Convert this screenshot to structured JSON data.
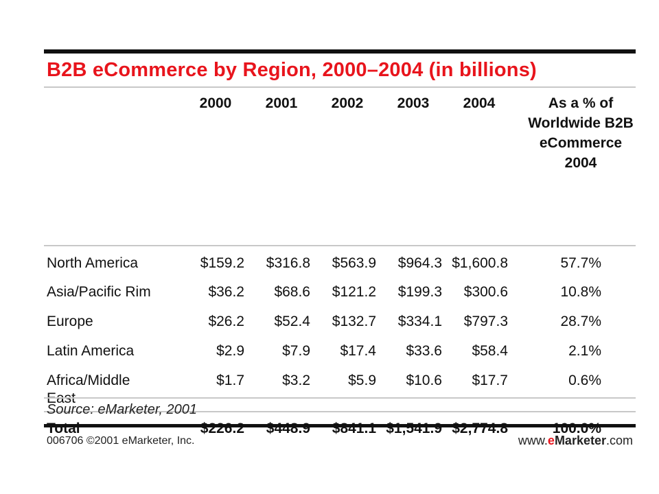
{
  "chart_data": {
    "type": "table",
    "title": "B2B eCommerce by Region, 2000–2004 (in billions)",
    "columns": [
      "",
      "2000",
      "2001",
      "2002",
      "2003",
      "2004",
      "As a % of Worldwide B2B eCommerce 2004"
    ],
    "rows": [
      {
        "label": "North America",
        "values": [
          "$159.2",
          "$316.8",
          "$563.9",
          "$964.3",
          "$1,600.8"
        ],
        "share": "57.7%"
      },
      {
        "label": "Asia/Pacific Rim",
        "values": [
          "$36.2",
          "$68.6",
          "$121.2",
          "$199.3",
          "$300.6"
        ],
        "share": "10.8%"
      },
      {
        "label": "Europe",
        "values": [
          "$26.2",
          "$52.4",
          "$132.7",
          "$334.1",
          "$797.3"
        ],
        "share": "28.7%"
      },
      {
        "label": "Latin America",
        "values": [
          "$2.9",
          "$7.9",
          "$17.4",
          "$33.6",
          "$58.4"
        ],
        "share": "2.1%"
      },
      {
        "label": "Africa/Middle East",
        "values": [
          "$1.7",
          "$3.2",
          "$5.9",
          "$10.6",
          "$17.7"
        ],
        "share": "0.6%"
      }
    ],
    "total": {
      "label": "Total",
      "values": [
        "$226.2",
        "$448.9",
        "$841.1",
        "$1,541.9",
        "$2,774.8"
      ],
      "share": "100.0%"
    },
    "source": "Source: eMarketer, 2001",
    "footer_left": "006706 ©2001 eMarketer, Inc.",
    "footer_right": {
      "prefix": "www.",
      "e": "e",
      "brand": "Marketer",
      "suffix": ".com"
    }
  },
  "colors": {
    "title": "#e8141c",
    "rule": "#111111",
    "divider": "#c8c8c8"
  }
}
